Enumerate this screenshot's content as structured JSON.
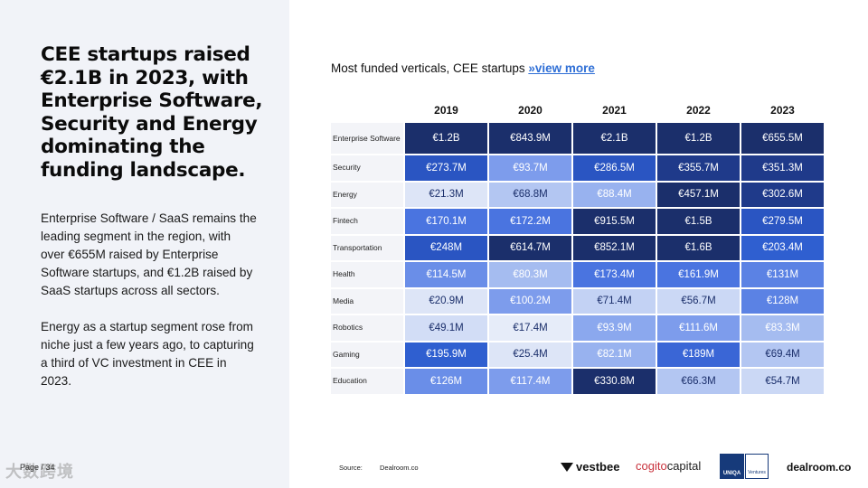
{
  "headline": "CEE startups raised €2.1B in 2023, with Enterprise Software, Security and Energy dominating the funding landscape.",
  "paragraphs": [
    "Enterprise Software / SaaS remains the leading segment in the region, with over €655M raised by Enterprise Software startups, and €1.2B raised by SaaS startups across all sectors.",
    "Energy as a startup segment rose from niche just a few years ago, to capturing a third of VC investment in CEE in 2023."
  ],
  "page_label": "Page / 34",
  "watermark": "大数跨境",
  "chart_title": "Most funded verticals, CEE startups",
  "chart_link": "»view more",
  "table": {
    "years": [
      "2019",
      "2020",
      "2021",
      "2022",
      "2023"
    ],
    "rows": [
      {
        "label": "Enterprise Software",
        "cells": [
          {
            "v": "€1.2B",
            "c": "#1b2f6b"
          },
          {
            "v": "€843.9M",
            "c": "#1b2f6b"
          },
          {
            "v": "€2.1B",
            "c": "#1b2f6b"
          },
          {
            "v": "€1.2B",
            "c": "#1b2f6b"
          },
          {
            "v": "€655.5M",
            "c": "#1b2f6b"
          }
        ]
      },
      {
        "label": "Security",
        "cells": [
          {
            "v": "€273.7M",
            "c": "#2a55c2"
          },
          {
            "v": "€93.7M",
            "c": "#7d9cec"
          },
          {
            "v": "€286.5M",
            "c": "#2a55c2"
          },
          {
            "v": "€355.7M",
            "c": "#1f3a8a"
          },
          {
            "v": "€351.3M",
            "c": "#1f3a8a"
          }
        ]
      },
      {
        "label": "Energy",
        "cells": [
          {
            "v": "€21.3M",
            "c": "#dde5f7"
          },
          {
            "v": "€68.8M",
            "c": "#b3c6f2"
          },
          {
            "v": "€88.4M",
            "c": "#98b2ef"
          },
          {
            "v": "€457.1M",
            "c": "#1b2f6b"
          },
          {
            "v": "€302.6M",
            "c": "#1f3a8a"
          }
        ]
      },
      {
        "label": "Fintech",
        "cells": [
          {
            "v": "€170.1M",
            "c": "#4a74e0"
          },
          {
            "v": "€172.2M",
            "c": "#4a74e0"
          },
          {
            "v": "€915.5M",
            "c": "#1b2f6b"
          },
          {
            "v": "€1.5B",
            "c": "#1b2f6b"
          },
          {
            "v": "€279.5M",
            "c": "#2a55c2"
          }
        ]
      },
      {
        "label": "Transportation",
        "cells": [
          {
            "v": "€248M",
            "c": "#2a55c2"
          },
          {
            "v": "€614.7M",
            "c": "#1b2f6b"
          },
          {
            "v": "€852.1M",
            "c": "#1b2f6b"
          },
          {
            "v": "€1.6B",
            "c": "#1b2f6b"
          },
          {
            "v": "€203.4M",
            "c": "#2f5fd0"
          }
        ]
      },
      {
        "label": "Health",
        "cells": [
          {
            "v": "€114.5M",
            "c": "#6a8ee8"
          },
          {
            "v": "€80.3M",
            "c": "#a5bcf0"
          },
          {
            "v": "€173.4M",
            "c": "#4a74e0"
          },
          {
            "v": "€161.9M",
            "c": "#4a74e0"
          },
          {
            "v": "€131M",
            "c": "#5b82e4"
          }
        ]
      },
      {
        "label": "Media",
        "cells": [
          {
            "v": "€20.9M",
            "c": "#dde5f7"
          },
          {
            "v": "€100.2M",
            "c": "#7d9cec"
          },
          {
            "v": "€71.4M",
            "c": "#c3d2f4"
          },
          {
            "v": "€56.7M",
            "c": "#cbd8f5"
          },
          {
            "v": "€128M",
            "c": "#5b82e4"
          }
        ]
      },
      {
        "label": "Robotics",
        "cells": [
          {
            "v": "€49.1M",
            "c": "#d2ddf6"
          },
          {
            "v": "€17.4M",
            "c": "#e6ecf9"
          },
          {
            "v": "€93.9M",
            "c": "#8ba8ee"
          },
          {
            "v": "€111.6M",
            "c": "#7d9cec"
          },
          {
            "v": "€83.3M",
            "c": "#a5bcf0"
          }
        ]
      },
      {
        "label": "Gaming",
        "cells": [
          {
            "v": "€195.9M",
            "c": "#2f5fd0"
          },
          {
            "v": "€25.4M",
            "c": "#dde5f7"
          },
          {
            "v": "€82.1M",
            "c": "#98b2ef"
          },
          {
            "v": "€189M",
            "c": "#3a66d6"
          },
          {
            "v": "€69.4M",
            "c": "#b3c6f2"
          }
        ]
      },
      {
        "label": "Education",
        "cells": [
          {
            "v": "€126M",
            "c": "#6a8ee8"
          },
          {
            "v": "€117.4M",
            "c": "#7d9cec"
          },
          {
            "v": "€330.8M",
            "c": "#1b2f6b"
          },
          {
            "v": "€66.3M",
            "c": "#b3c6f2"
          },
          {
            "v": "€54.7M",
            "c": "#cbd8f5"
          }
        ]
      }
    ]
  },
  "source_label": "Source:",
  "source_value": "Dealroom.co",
  "logos": {
    "vestbee": "vestbee",
    "cogito_a": "cogito",
    "cogito_b": "capital",
    "uniqa": "UNIQA",
    "ventures": "Ventures",
    "dealroom": "dealroom.co"
  },
  "colors": {
    "dark_text": "#ffffff",
    "light_text": "#1b2f6b",
    "link": "#2f6fd6"
  }
}
